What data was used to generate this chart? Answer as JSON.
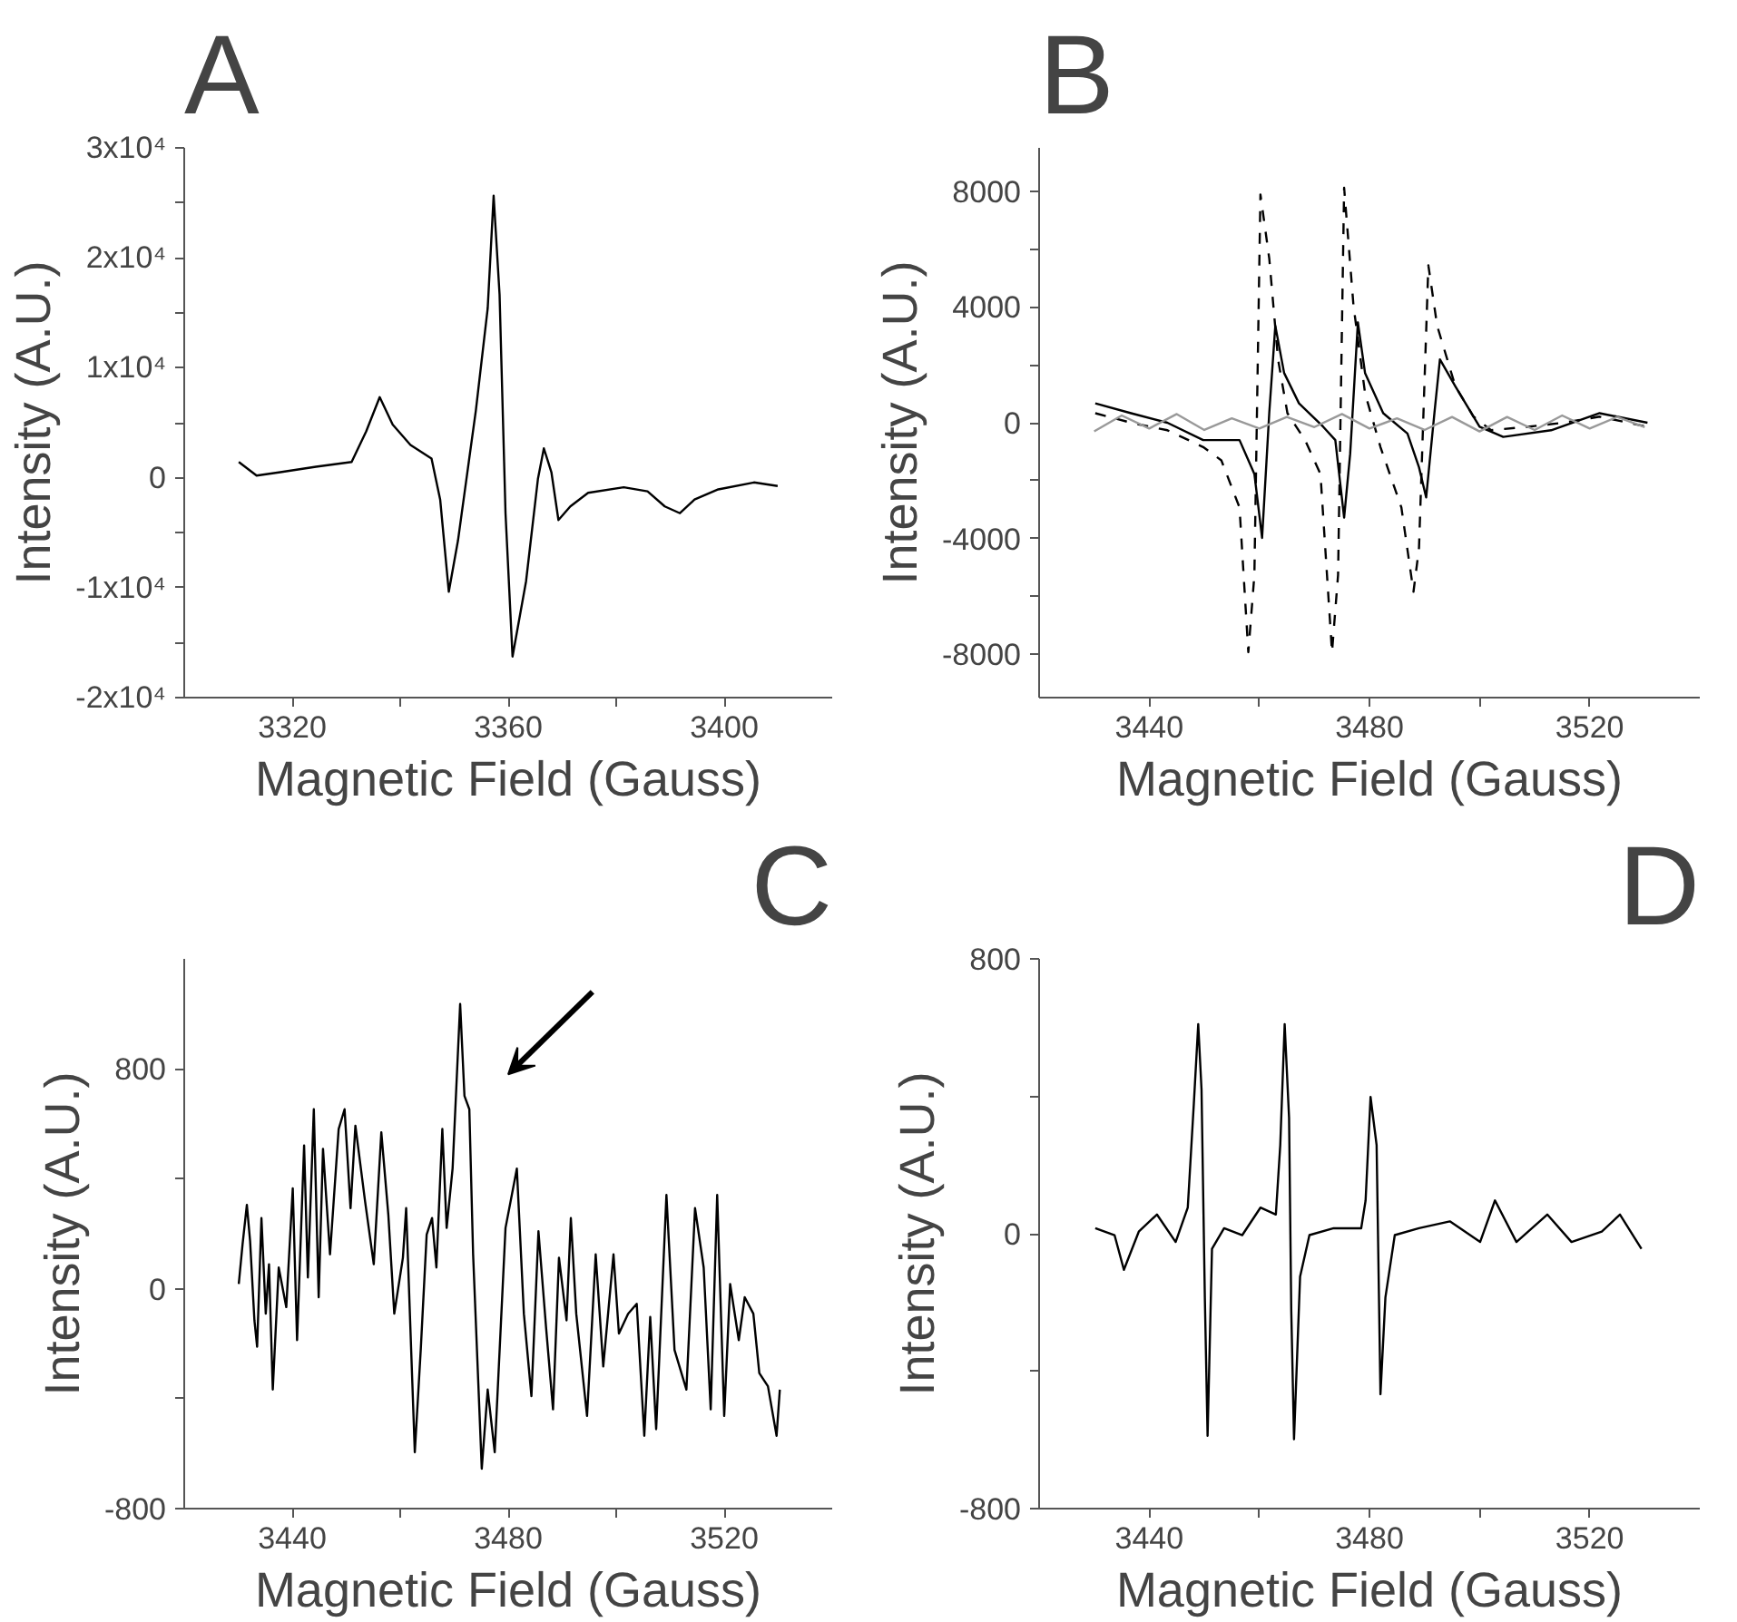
{
  "chart_data": [
    {
      "type": "line",
      "title": "A",
      "xlabel": "Magnetic Field (Gauss)",
      "ylabel": "Intensity (A.U.)",
      "xlim": [
        3300,
        3420
      ],
      "ylim": [
        -20000,
        30000
      ],
      "xticks": [
        3320,
        {
          "value": 3340,
          "label": null
        },
        3360,
        {
          "value": 3380,
          "label": null
        },
        3400
      ],
      "yticks": [
        {
          "value": -20000,
          "label": "-2x10⁴"
        },
        {
          "value": -15000,
          "label": null
        },
        {
          "value": -10000,
          "label": "-1x10⁴"
        },
        {
          "value": -5000,
          "label": null
        },
        0,
        {
          "value": 5000,
          "label": null
        },
        {
          "value": 10000,
          "label": "1x10⁴"
        },
        {
          "value": 15000,
          "label": null
        },
        {
          "value": 20000,
          "label": "2x10⁴"
        },
        {
          "value": 25000,
          "label": null
        },
        {
          "value": 30000,
          "label": "3x10⁴"
        }
      ],
      "series": [
        {
          "color": "#000000",
          "x": [
            3310.1,
            3313.4,
            3317.8,
            3324.4,
            3331,
            3333.7,
            3336.2,
            3338.6,
            3341.9,
            3345.8,
            3347.4,
            3349,
            3350.7,
            3354,
            3356.2,
            3357.3,
            3358.4,
            3359.5,
            3360.8,
            3363.3,
            3365.5,
            3366.6,
            3368,
            3369.3,
            3371.5,
            3374.8,
            3381.4,
            3385.8,
            3389,
            3391.8,
            3394.5,
            3398.9,
            3405.5,
            3409.9
          ],
          "values": [
            1430,
            190,
            500,
            1000,
            1430,
            4220,
            7330,
            4840,
            2980,
            1740,
            -1990,
            -10370,
            -5710,
            6090,
            15400,
            25650,
            16650,
            -3230,
            -16270,
            -9440,
            -120,
            2670,
            500,
            -3850,
            -2610,
            -1370,
            -870,
            -1240,
            -2610,
            -3230,
            -1990,
            -1060,
            -430,
            -750
          ]
        }
      ]
    },
    {
      "type": "line",
      "title": "B",
      "xlabel": "Magnetic Field (Gauss)",
      "ylabel": "Intensity (A.U.)",
      "xlim": [
        3420,
        3540
      ],
      "ylim": [
        -9500,
        9500
      ],
      "xticks": [
        3440,
        {
          "value": 3460,
          "label": null
        },
        3480,
        {
          "value": 3500,
          "label": null
        },
        3520
      ],
      "yticks": [
        -8000,
        {
          "value": -6000,
          "label": null
        },
        -4000,
        {
          "value": -2000,
          "label": null
        },
        0,
        {
          "value": 2000,
          "label": null
        },
        4000,
        {
          "value": 6000,
          "label": null
        },
        8000
      ],
      "series": [
        {
          "color": "#000000",
          "line_style": "dashed",
          "x": [
            3430.2,
            3436.7,
            3443.3,
            3449.8,
            3453.1,
            3456.4,
            3458,
            3459.1,
            3460.2,
            3461.8,
            3463.4,
            3465.1,
            3468.3,
            3471.1,
            3473.2,
            3474.3,
            3475.4,
            3477.1,
            3479.2,
            3482,
            3485.8,
            3488,
            3489,
            3490.7,
            3492.3,
            3495.6,
            3498.9,
            3502.1,
            3508.7,
            3515.2,
            3521.8,
            3530.5
          ],
          "values": [
            330,
            0,
            -260,
            -840,
            -1300,
            -2930,
            -7930,
            -5260,
            7890,
            5680,
            2190,
            330,
            -600,
            -1770,
            -7930,
            -5260,
            8120,
            4050,
            1020,
            -840,
            -2930,
            -5840,
            -4330,
            5440,
            3350,
            1260,
            210,
            -260,
            -140,
            0,
            210,
            -140
          ]
        },
        {
          "color": "#000000",
          "line_style": "solid",
          "x": [
            3430.2,
            3436.7,
            3443.3,
            3449.8,
            3456.4,
            3459.1,
            3460.5,
            3461.8,
            3462.9,
            3464.5,
            3467.2,
            3471.6,
            3473.8,
            3475.4,
            3476.5,
            3477.9,
            3479.2,
            3482.5,
            3486.9,
            3489,
            3490.3,
            3491.8,
            3492.8,
            3495.6,
            3500,
            3504.3,
            3513,
            3521.8,
            3530.5
          ],
          "values": [
            670,
            330,
            0,
            -600,
            -600,
            -1770,
            -3980,
            330,
            3350,
            1720,
            670,
            -140,
            -600,
            -3280,
            -1070,
            3470,
            1720,
            330,
            -370,
            -1540,
            -2580,
            330,
            2190,
            1260,
            -140,
            -490,
            -260,
            330,
            0
          ]
        },
        {
          "color": "#999999",
          "line_style": "solid",
          "x": [
            3430,
            3435,
            3440,
            3445,
            3450,
            3455,
            3460,
            3465,
            3470,
            3475,
            3480,
            3485,
            3490,
            3495,
            3500,
            3505,
            3510,
            3515,
            3520,
            3525,
            3530
          ],
          "values": [
            -300,
            250,
            -200,
            300,
            -250,
            150,
            -200,
            200,
            -150,
            300,
            -200,
            150,
            -250,
            200,
            -300,
            200,
            -250,
            250,
            -200,
            200,
            -150
          ]
        }
      ]
    },
    {
      "type": "line",
      "title": "C",
      "xlabel": "Magnetic Field (Gauss)",
      "ylabel": "Intensity (A.U.)",
      "xlim": [
        3420,
        3540
      ],
      "ylim": [
        -800,
        1200
      ],
      "xticks": [
        3440,
        {
          "value": 3460,
          "label": null
        },
        3480,
        {
          "value": 3500,
          "label": null
        },
        3520
      ],
      "yticks": [
        -800,
        {
          "value": -400,
          "label": null
        },
        0,
        {
          "value": 400,
          "label": null
        },
        800
      ],
      "series": [
        {
          "color": "#000000",
          "x": [
            3430.1,
            3430.8,
            3431.6,
            3432.2,
            3433,
            3433.5,
            3434.3,
            3435.1,
            3435.7,
            3436.4,
            3437.5,
            3438.9,
            3440.1,
            3440.9,
            3442.2,
            3442.9,
            3444,
            3444.9,
            3445.7,
            3447,
            3448.6,
            3449.7,
            3450.8,
            3451.7,
            3453.5,
            3455.1,
            3456.5,
            3457.8,
            3458.9,
            3460.5,
            3461.1,
            3462.7,
            3463.8,
            3464.9,
            3465.9,
            3466.7,
            3467.8,
            3468.6,
            3469.7,
            3471.1,
            3471.9,
            3472.8,
            3473.5,
            3475.1,
            3476.2,
            3477.5,
            3479.5,
            3481.6,
            3482.9,
            3484.3,
            3485.6,
            3487,
            3488.3,
            3489.4,
            3490.8,
            3491.6,
            3492.6,
            3494.6,
            3496.2,
            3497.6,
            3499.5,
            3500.5,
            3502.2,
            3503.8,
            3505.2,
            3506.3,
            3507.4,
            3509.3,
            3510.8,
            3513,
            3514.6,
            3516.2,
            3517.5,
            3518.7,
            3520,
            3521.1,
            3522.7,
            3523.8,
            3525.4,
            3526.5,
            3528.1,
            3529.7,
            3530.3
          ],
          "values": [
            17,
            161,
            305,
            173,
            -115,
            -211,
            257,
            -91,
            89,
            -367,
            77,
            -67,
            365,
            -187,
            521,
            41,
            653,
            -31,
            509,
            125,
            581,
            653,
            293,
            593,
            317,
            89,
            569,
            269,
            -91,
            113,
            293,
            -595,
            -223,
            197,
            257,
            77,
            581,
            221,
            437,
            1036,
            701,
            653,
            125,
            -655,
            -367,
            -595,
            221,
            437,
            -91,
            -391,
            209,
            -139,
            -439,
            113,
            -115,
            257,
            -91,
            -463,
            125,
            -283,
            125,
            -163,
            -91,
            -55,
            -535,
            -103,
            -511,
            341,
            -223,
            -367,
            293,
            77,
            -439,
            341,
            -463,
            17,
            -187,
            -31,
            -91,
            -307,
            -355,
            -535,
            -367
          ]
        }
      ]
    },
    {
      "type": "line",
      "title": "D",
      "xlabel": "Magnetic Field (Gauss)",
      "ylabel": "Intensity (A.U.)",
      "xlim": [
        3420,
        3540
      ],
      "ylim": [
        -800,
        800
      ],
      "xticks": [
        3440,
        {
          "value": 3460,
          "label": null
        },
        3480,
        {
          "value": 3500,
          "label": null
        },
        3520
      ],
      "yticks": [
        -800,
        {
          "value": -400,
          "label": null
        },
        0,
        {
          "value": 400,
          "label": null
        },
        800
      ],
      "series": [
        {
          "color": "#000000",
          "x": [
            3430.2,
            3433.7,
            3435.4,
            3438.1,
            3441.4,
            3444.8,
            3447,
            3448.1,
            3448.9,
            3449.5,
            3450.1,
            3450.6,
            3451.4,
            3453.6,
            3456.9,
            3460.2,
            3463,
            3463.8,
            3464.6,
            3465.4,
            3465.8,
            3466.3,
            3467.4,
            3469.1,
            3473.5,
            3478.5,
            3479.3,
            3480.2,
            3481.3,
            3482,
            3482.9,
            3484.6,
            3489,
            3494.6,
            3500.1,
            3502.8,
            3506.7,
            3512.3,
            3516.7,
            3522.2,
            3525.5,
            3529.4
          ],
          "values": [
            16,
            -4,
            -105,
            6,
            56,
            -24,
            76,
            378,
            610,
            419,
            -185,
            -588,
            -44,
            16,
            -4,
            76,
            56,
            258,
            610,
            338,
            -225,
            -598,
            -125,
            -4,
            16,
            16,
            97,
            398,
            258,
            -467,
            -185,
            -4,
            16,
            36,
            -24,
            97,
            -24,
            56,
            -24,
            6,
            56,
            -44
          ]
        }
      ]
    }
  ]
}
